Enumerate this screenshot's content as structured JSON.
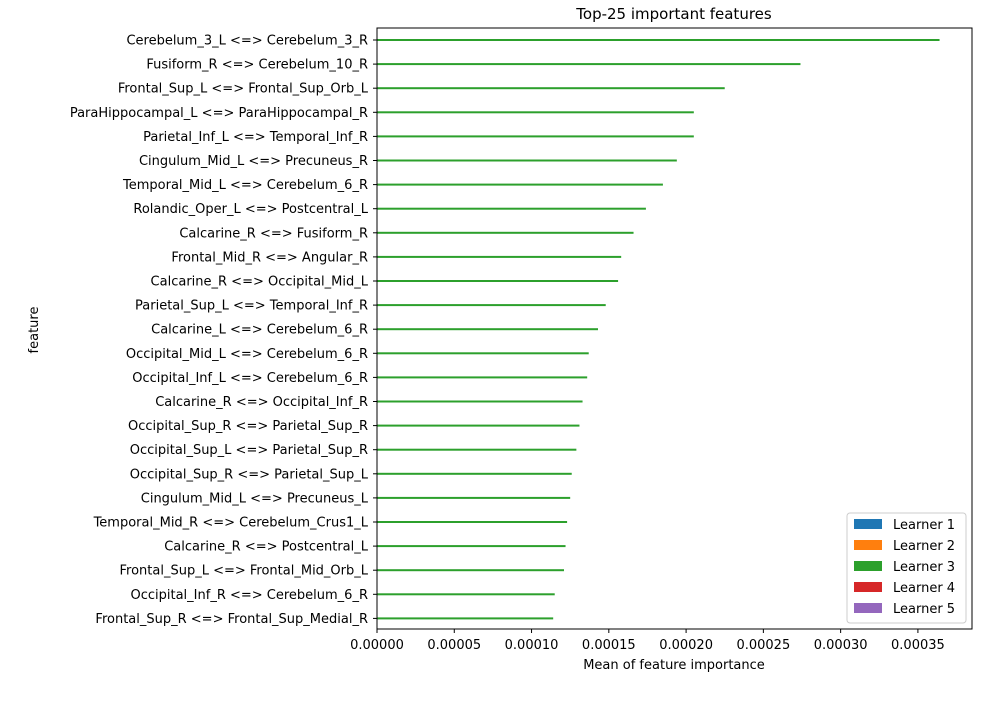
{
  "chart_data": {
    "type": "bar",
    "orientation": "horizontal",
    "title": "Top-25 important features",
    "xlabel": "Mean of feature importance",
    "ylabel": "feature",
    "xlim": [
      0,
      0.000385
    ],
    "xticks": [
      "0.00000",
      "0.00005",
      "0.00010",
      "0.00015",
      "0.00020",
      "0.00025",
      "0.00030",
      "0.00035"
    ],
    "xtick_values": [
      0,
      5e-05,
      0.0001,
      0.00015,
      0.0002,
      0.00025,
      0.0003,
      0.00035
    ],
    "grid": false,
    "legend_position": "lower-right",
    "categories": [
      "Cerebelum_3_L <=> Cerebelum_3_R",
      "Fusiform_R <=> Cerebelum_10_R",
      "Frontal_Sup_L <=> Frontal_Sup_Orb_L",
      "ParaHippocampal_L <=> ParaHippocampal_R",
      "Parietal_Inf_L <=> Temporal_Inf_R",
      "Cingulum_Mid_L <=> Precuneus_R",
      "Temporal_Mid_L <=> Cerebelum_6_R",
      "Rolandic_Oper_L <=> Postcentral_L",
      "Calcarine_R <=> Fusiform_R",
      "Frontal_Mid_R <=> Angular_R",
      "Calcarine_R <=> Occipital_Mid_L",
      "Parietal_Sup_L <=> Temporal_Inf_R",
      "Calcarine_L <=> Cerebelum_6_R",
      "Occipital_Mid_L <=> Cerebelum_6_R",
      "Occipital_Inf_L <=> Cerebelum_6_R",
      "Calcarine_R <=> Occipital_Inf_R",
      "Occipital_Sup_R <=> Parietal_Sup_R",
      "Occipital_Sup_L <=> Parietal_Sup_R",
      "Occipital_Sup_R <=> Parietal_Sup_L",
      "Cingulum_Mid_L <=> Precuneus_L",
      "Temporal_Mid_R <=> Cerebelum_Crus1_L",
      "Calcarine_R <=> Postcentral_L",
      "Frontal_Sup_L <=> Frontal_Mid_Orb_L",
      "Occipital_Inf_R <=> Cerebelum_6_R",
      "Frontal_Sup_R <=> Frontal_Sup_Medial_R"
    ],
    "series": [
      {
        "name": "Learner 1",
        "color": "#1f77b4",
        "values": [
          0,
          0,
          0,
          0,
          0,
          0,
          0,
          0,
          0,
          0,
          0,
          0,
          0,
          0,
          0,
          0,
          0,
          0,
          0,
          0,
          0,
          0,
          0,
          0,
          0
        ]
      },
      {
        "name": "Learner 2",
        "color": "#ff7f0e",
        "values": [
          0,
          0,
          0,
          0,
          0,
          0,
          0,
          0,
          0,
          0,
          0,
          0,
          0,
          0,
          0,
          0,
          0,
          0,
          0,
          0,
          0,
          0,
          0,
          0,
          0
        ]
      },
      {
        "name": "Learner 3",
        "color": "#2ca02c",
        "values": [
          0.000364,
          0.000274,
          0.000225,
          0.000205,
          0.000205,
          0.000194,
          0.000185,
          0.000174,
          0.000166,
          0.000158,
          0.000156,
          0.000148,
          0.000143,
          0.000137,
          0.000136,
          0.000133,
          0.000131,
          0.000129,
          0.000126,
          0.000125,
          0.000123,
          0.000122,
          0.000121,
          0.000115,
          0.000114
        ]
      },
      {
        "name": "Learner 4",
        "color": "#d62728",
        "values": [
          0,
          0,
          0,
          0,
          0,
          0,
          0,
          0,
          0,
          0,
          0,
          0,
          0,
          0,
          0,
          0,
          0,
          0,
          0,
          0,
          0,
          0,
          0,
          0,
          0
        ]
      },
      {
        "name": "Learner 5",
        "color": "#9467bd",
        "values": [
          0,
          0,
          0,
          0,
          0,
          0,
          0,
          0,
          0,
          0,
          0,
          0,
          0,
          0,
          0,
          0,
          0,
          0,
          0,
          0,
          0,
          0,
          0,
          0,
          0
        ]
      }
    ]
  }
}
